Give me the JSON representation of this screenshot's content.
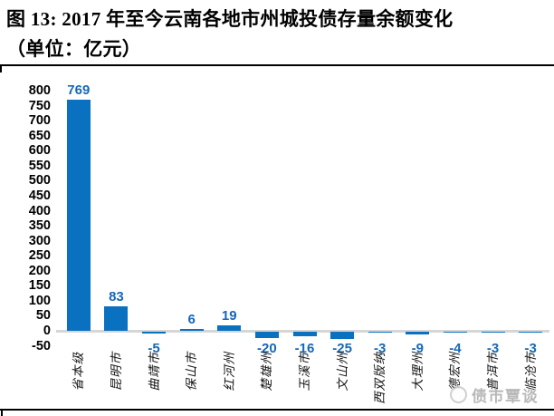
{
  "title": {
    "line1": "图 13: 2017 年至今云南各地市州城投债存量余额变化",
    "line2": "（单位：亿元）"
  },
  "watermark": {
    "text": "债市覃谈"
  },
  "chart_data": {
    "type": "bar",
    "title": "图 13: 2017 年至今云南各地市州城投债存量余额变化（单位：亿元）",
    "unit": "亿元",
    "categories": [
      "省本级",
      "昆明市",
      "曲靖市",
      "保山市",
      "红河州",
      "楚雄州",
      "玉溪市",
      "文山州",
      "西双版纳",
      "大理州",
      "德宏州",
      "普洱市",
      "临沧市"
    ],
    "values": [
      769,
      83,
      -5,
      6,
      19,
      -20,
      -16,
      -25,
      -3,
      -9,
      -4,
      -3,
      -3
    ],
    "xlabel": "",
    "ylabel": "",
    "ylim": [
      -50,
      800
    ],
    "ytick_step": 50,
    "yticks": [
      800,
      750,
      700,
      650,
      600,
      550,
      500,
      450,
      400,
      350,
      300,
      250,
      200,
      150,
      100,
      50,
      0,
      -50
    ],
    "grid": false,
    "legend": false,
    "bar_color": "#0a70c0",
    "value_label_color": "#1668b8",
    "axis_line_color": "#d6d6d6",
    "tick_label_color": "#000000"
  }
}
